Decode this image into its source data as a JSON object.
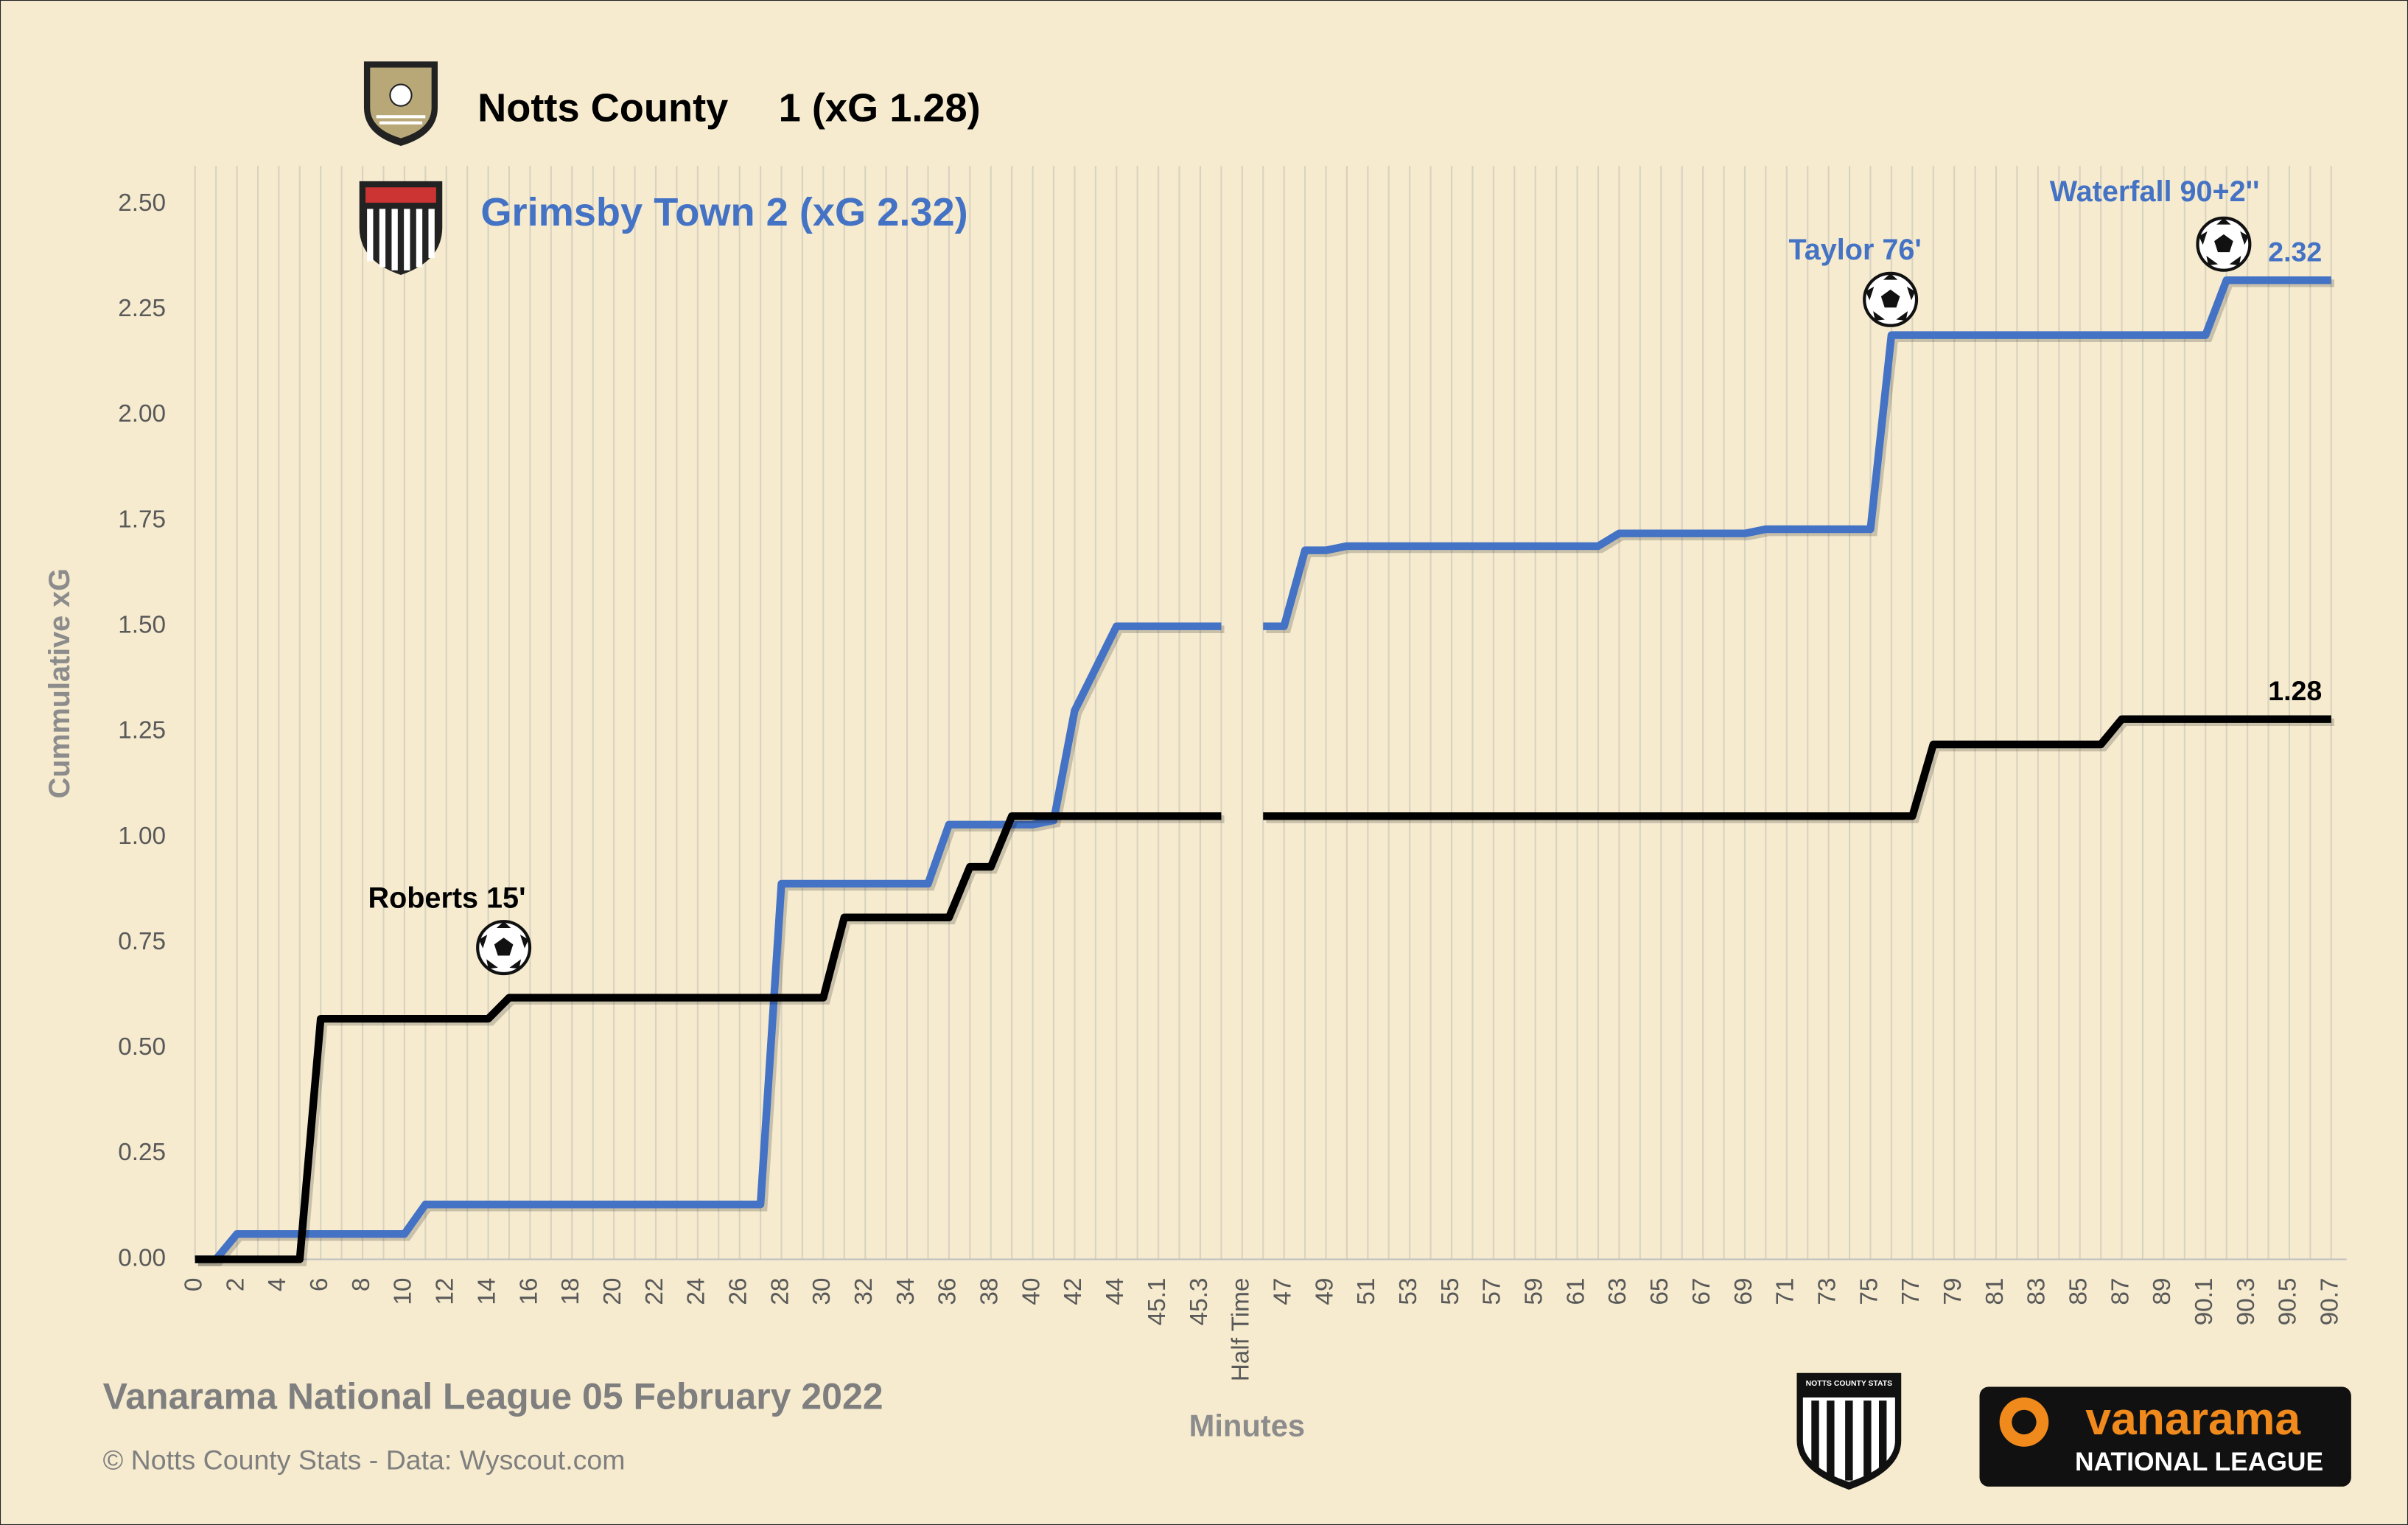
{
  "chart_data": {
    "type": "line",
    "categories": [
      "0",
      null,
      "2",
      null,
      "4",
      null,
      "6",
      null,
      "8",
      null,
      "10",
      null,
      "12",
      null,
      "14",
      null,
      "16",
      null,
      "18",
      null,
      "20",
      null,
      "22",
      null,
      "24",
      null,
      "26",
      null,
      "28",
      null,
      "30",
      null,
      "32",
      null,
      "34",
      null,
      "36",
      null,
      "38",
      null,
      "40",
      null,
      "42",
      null,
      "44",
      null,
      "45.1",
      null,
      "45.3",
      null,
      "Half Time",
      null,
      "47",
      null,
      "49",
      null,
      "51",
      null,
      "53",
      null,
      "55",
      null,
      "57",
      null,
      "59",
      null,
      "61",
      null,
      "63",
      null,
      "65",
      null,
      "67",
      null,
      "69",
      null,
      "71",
      null,
      "73",
      null,
      "75",
      null,
      "77",
      null,
      "79",
      null,
      "81",
      null,
      "83",
      null,
      "85",
      null,
      "87",
      null,
      "89",
      null,
      "90.1",
      null,
      "90.3",
      null,
      "90.5",
      null,
      "90.7"
    ],
    "series": [
      {
        "name": "Grimsby Town 2 (xG 2.32)",
        "color": "#4472c4",
        "values": [
          0,
          0,
          0.06,
          0.06,
          0.06,
          0.06,
          0.06,
          0.06,
          0.06,
          0.06,
          0.06,
          0.13,
          0.13,
          0.13,
          0.13,
          0.13,
          0.13,
          0.13,
          0.13,
          0.13,
          0.13,
          0.13,
          0.13,
          0.13,
          0.13,
          0.13,
          0.13,
          0.13,
          0.89,
          0.89,
          0.89,
          0.89,
          0.89,
          0.89,
          0.89,
          0.89,
          1.03,
          1.03,
          1.03,
          1.03,
          1.03,
          1.04,
          1.3,
          1.4,
          1.5,
          1.5,
          1.5,
          1.5,
          1.5,
          1.5,
          null,
          1.5,
          1.5,
          1.68,
          1.68,
          1.69,
          1.69,
          1.69,
          1.69,
          1.69,
          1.69,
          1.69,
          1.69,
          1.69,
          1.69,
          1.69,
          1.69,
          1.69,
          1.72,
          1.72,
          1.72,
          1.72,
          1.72,
          1.72,
          1.72,
          1.73,
          1.73,
          1.73,
          1.73,
          1.73,
          1.73,
          2.19,
          2.19,
          2.19,
          2.19,
          2.19,
          2.19,
          2.19,
          2.19,
          2.19,
          2.19,
          2.19,
          2.19,
          2.19,
          2.19,
          2.19,
          2.19,
          2.32,
          2.32,
          2.32,
          2.32,
          2.32,
          2.32
        ]
      },
      {
        "name": "Notts County",
        "score": "1 (xG 1.28)",
        "color": "#000000",
        "values": [
          0,
          0,
          0,
          0,
          0,
          0,
          0.57,
          0.57,
          0.57,
          0.57,
          0.57,
          0.57,
          0.57,
          0.57,
          0.57,
          0.62,
          0.62,
          0.62,
          0.62,
          0.62,
          0.62,
          0.62,
          0.62,
          0.62,
          0.62,
          0.62,
          0.62,
          0.62,
          0.62,
          0.62,
          0.62,
          0.81,
          0.81,
          0.81,
          0.81,
          0.81,
          0.81,
          0.93,
          0.93,
          1.05,
          1.05,
          1.05,
          1.05,
          1.05,
          1.05,
          1.05,
          1.05,
          1.05,
          1.05,
          1.05,
          null,
          1.05,
          1.05,
          1.05,
          1.05,
          1.05,
          1.05,
          1.05,
          1.05,
          1.05,
          1.05,
          1.05,
          1.05,
          1.05,
          1.05,
          1.05,
          1.05,
          1.05,
          1.05,
          1.05,
          1.05,
          1.05,
          1.05,
          1.05,
          1.05,
          1.05,
          1.05,
          1.05,
          1.05,
          1.05,
          1.05,
          1.05,
          1.05,
          1.22,
          1.22,
          1.22,
          1.22,
          1.22,
          1.22,
          1.22,
          1.22,
          1.22,
          1.28,
          1.28,
          1.28,
          1.28,
          1.28,
          1.28,
          1.28,
          1.28,
          1.28,
          1.28,
          1.28
        ]
      }
    ],
    "ylim": [
      0,
      2.5
    ],
    "yticks": [
      {
        "value": 0,
        "label": "0.00"
      },
      {
        "value": 0.25,
        "label": "0.25"
      },
      {
        "value": 0.5,
        "label": "0.50"
      },
      {
        "value": 0.75,
        "label": "0.75"
      },
      {
        "value": 1,
        "label": "1.00"
      },
      {
        "value": 1.25,
        "label": "1.25"
      },
      {
        "value": 1.5,
        "label": "1.50"
      },
      {
        "value": 1.75,
        "label": "1.75"
      },
      {
        "value": 2,
        "label": "2.00"
      },
      {
        "value": 2.25,
        "label": "2.25"
      },
      {
        "value": 2.5,
        "label": "2.50"
      }
    ],
    "grid": "x",
    "xlabel": "Minutes",
    "ylabel": "Cummulative  xG",
    "annotations": [
      {
        "text": "Roberts 15'"
      },
      {
        "text": "Taylor 76'"
      },
      {
        "text": "Waterfall 90+2''"
      }
    ],
    "footer": {
      "title": "Vanarama National League 05 February 2022",
      "credit": "© Notts County Stats - Data: Wyscout.com"
    },
    "logos": {
      "stats": "NOTTS COUNTY STATS",
      "sponsor": "vanarama",
      "league": "NATIONAL LEAGUE"
    }
  }
}
